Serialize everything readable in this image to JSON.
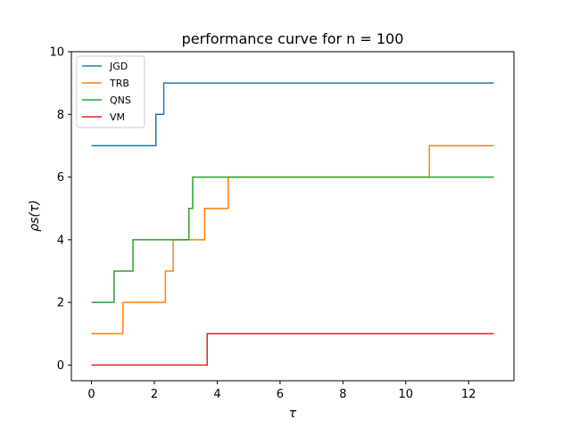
{
  "chart_data": {
    "type": "line",
    "title": "performance curve for n = 100",
    "xlabel": "τ",
    "ylabel": "ρs(τ)",
    "xlim": [
      -0.64,
      13.44
    ],
    "ylim": [
      -0.5,
      10
    ],
    "xticks": [
      0,
      2,
      4,
      6,
      8,
      10,
      12
    ],
    "yticks": [
      0,
      2,
      4,
      6,
      8,
      10
    ],
    "grid": false,
    "legend_position": "top-left",
    "drawstyle": "steps-post",
    "series": [
      {
        "name": "JGD",
        "color": "#1f77b4",
        "x": [
          0,
          2.05,
          2.3,
          12.8
        ],
        "y": [
          7,
          8,
          9,
          9
        ]
      },
      {
        "name": "TRB",
        "color": "#ff7f0e",
        "x": [
          0,
          1.0,
          2.35,
          2.6,
          3.6,
          4.35,
          10.75,
          12.8
        ],
        "y": [
          1,
          2,
          3,
          4,
          5,
          6,
          7,
          7
        ]
      },
      {
        "name": "QNS",
        "color": "#2ca02c",
        "x": [
          0,
          0.72,
          1.32,
          3.1,
          3.22,
          12.8
        ],
        "y": [
          2,
          3,
          4,
          5,
          6,
          6
        ]
      },
      {
        "name": "VM",
        "color": "#d62728",
        "x": [
          0,
          3.68,
          12.8
        ],
        "y": [
          0,
          1,
          1
        ]
      }
    ]
  }
}
